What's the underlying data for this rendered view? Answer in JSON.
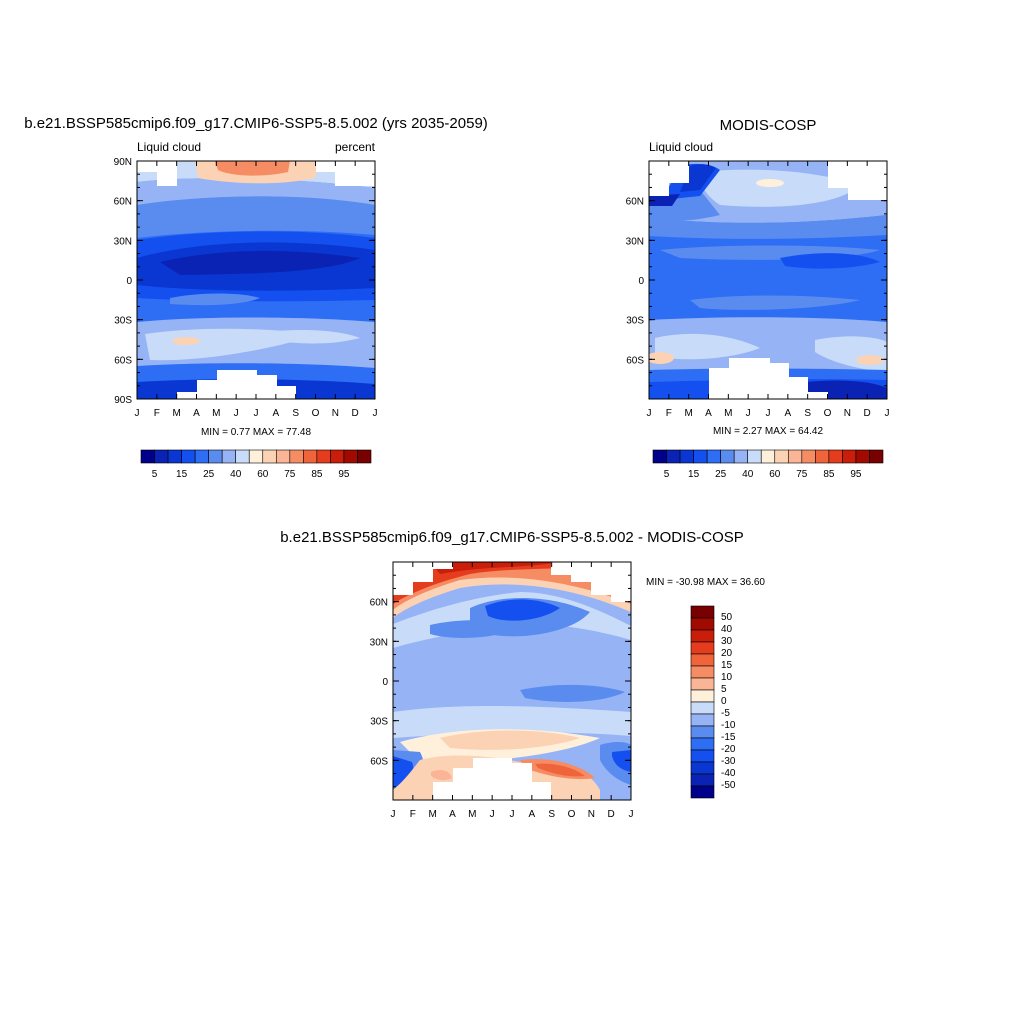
{
  "chart_data": [
    {
      "type": "heatmap",
      "title": "b.e21.BSSP585cmip6.f09_g17.CMIP6-SSP5-8.5.002 (yrs 2035-2059)",
      "left_label": "Liquid cloud",
      "right_label": "percent",
      "x_ticks": [
        "J",
        "F",
        "M",
        "A",
        "M",
        "J",
        "J",
        "A",
        "S",
        "O",
        "N",
        "D",
        "J"
      ],
      "y_ticks": [
        "90N",
        "60N",
        "30N",
        "0",
        "30S",
        "60S",
        "90S"
      ],
      "stats": "MIN =   0.77 MAX =  77.48",
      "colorbar_ticks": [
        "5",
        "15",
        "25",
        "40",
        "60",
        "75",
        "85",
        "95"
      ]
    },
    {
      "type": "heatmap",
      "title": "MODIS-COSP",
      "left_label": "Liquid cloud",
      "x_ticks": [
        "J",
        "F",
        "M",
        "A",
        "M",
        "J",
        "J",
        "A",
        "S",
        "O",
        "N",
        "D",
        "J"
      ],
      "y_ticks": [
        "60N",
        "30N",
        "0",
        "30S",
        "60S"
      ],
      "stats": "MIN =   2.27 MAX =  64.42",
      "colorbar_ticks": [
        "5",
        "15",
        "25",
        "40",
        "60",
        "75",
        "85",
        "95"
      ]
    },
    {
      "type": "heatmap",
      "title": "b.e21.BSSP585cmip6.f09_g17.CMIP6-SSP5-8.5.002 - MODIS-COSP",
      "x_ticks": [
        "J",
        "F",
        "M",
        "A",
        "M",
        "J",
        "J",
        "A",
        "S",
        "O",
        "N",
        "D",
        "J"
      ],
      "y_ticks": [
        "60N",
        "30N",
        "0",
        "30S",
        "60S"
      ],
      "stats": "MIN = -30.98 MAX =  36.60",
      "colorbar_ticks": [
        "50",
        "40",
        "30",
        "20",
        "15",
        "10",
        "5",
        "0",
        "-5",
        "-10",
        "-15",
        "-20",
        "-30",
        "-40",
        "-50"
      ]
    }
  ],
  "colors": {
    "abs_scale": [
      "#00008b",
      "#0a23b4",
      "#0a37d2",
      "#1450f0",
      "#2d6ef5",
      "#5a8cf0",
      "#96b4f5",
      "#c8dcfa",
      "#fff0dc",
      "#fcd2b4",
      "#fab496",
      "#f58c64",
      "#f0643c",
      "#e63c1e",
      "#c81e0a",
      "#a00a00",
      "#780000"
    ],
    "diff_scale": [
      "#780000",
      "#a00a00",
      "#c81e0a",
      "#e63c1e",
      "#f0643c",
      "#f58c64",
      "#fab496",
      "#fff0dc",
      "#c8dcfa",
      "#96b4f5",
      "#5a8cf0",
      "#2d6ef5",
      "#1450f0",
      "#0a37d2",
      "#0a23b4",
      "#00008b"
    ]
  }
}
